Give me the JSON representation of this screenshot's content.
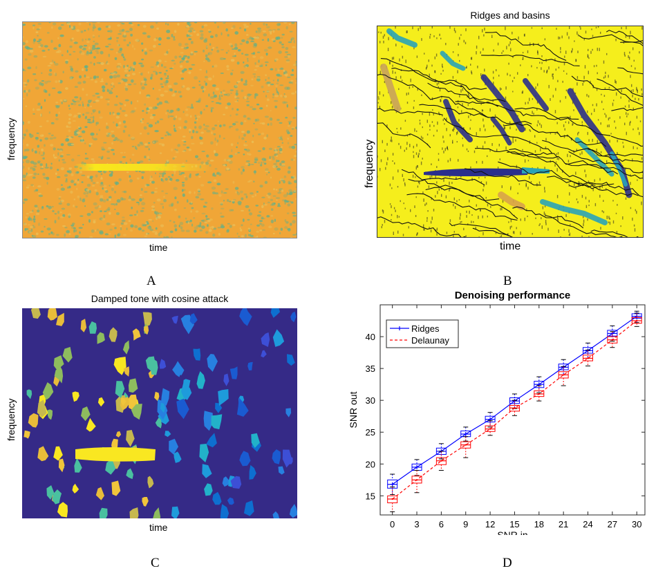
{
  "panels": {
    "a": {
      "caption": "A",
      "xlabel": "time",
      "ylabel": "frequency",
      "title": ""
    },
    "b": {
      "caption": "B",
      "xlabel": "time",
      "ylabel": "frequency",
      "title": "Ridges and basins"
    },
    "c": {
      "caption": "C",
      "xlabel": "time",
      "ylabel": "frequency",
      "title": "Damped tone with cosine attack"
    },
    "d": {
      "caption": "D"
    }
  },
  "colors": {
    "spec_bg": "#f0a637",
    "spec_speckle": "#5fb08a",
    "spec_line": "#f8e81c",
    "ridge_bg": "#f5ee1c",
    "basin": "#2b2f8c",
    "basin_teal": "#2aa3b8",
    "cell_bg": "#352a87",
    "ridges_series": "#0000ff",
    "delaunay_series": "#ff0000"
  },
  "chart_data": {
    "type": "line",
    "title": "Denoising performance",
    "xlabel": "SNR in",
    "ylabel": "SNR out",
    "x": [
      0,
      3,
      6,
      9,
      12,
      15,
      18,
      21,
      24,
      27,
      30
    ],
    "xticks": [
      "0",
      "3",
      "6",
      "9",
      "12",
      "15",
      "18",
      "21",
      "24",
      "27",
      "30"
    ],
    "yticks": [
      "15",
      "20",
      "25",
      "30",
      "35",
      "40"
    ],
    "xlim": [
      -1.5,
      31
    ],
    "ylim": [
      12,
      45
    ],
    "grid": false,
    "legend_position": "top-left",
    "series": [
      {
        "name": "Ridges",
        "style": "solid",
        "values": [
          16.8,
          19.5,
          22.0,
          24.7,
          27.0,
          29.9,
          32.5,
          35.2,
          37.8,
          40.5,
          43.2
        ],
        "boxes": [
          {
            "q1": 16.2,
            "q3": 17.5,
            "lo": 15.2,
            "hi": 18.4
          },
          {
            "q1": 19.0,
            "q3": 20.0,
            "lo": 18.2,
            "hi": 20.7
          },
          {
            "q1": 21.5,
            "q3": 22.5,
            "lo": 20.8,
            "hi": 23.2
          },
          {
            "q1": 24.3,
            "q3": 25.2,
            "lo": 23.6,
            "hi": 25.8
          },
          {
            "q1": 26.6,
            "q3": 27.5,
            "lo": 25.8,
            "hi": 28.1
          },
          {
            "q1": 29.5,
            "q3": 30.4,
            "lo": 28.7,
            "hi": 31.0
          },
          {
            "q1": 32.0,
            "q3": 33.0,
            "lo": 31.2,
            "hi": 33.7
          },
          {
            "q1": 34.8,
            "q3": 35.7,
            "lo": 34.0,
            "hi": 36.4
          },
          {
            "q1": 37.4,
            "q3": 38.3,
            "lo": 36.6,
            "hi": 39.0
          },
          {
            "q1": 40.1,
            "q3": 41.0,
            "lo": 39.3,
            "hi": 41.7
          },
          {
            "q1": 42.9,
            "q3": 43.6,
            "lo": 42.2,
            "hi": 44.0
          }
        ]
      },
      {
        "name": "Delaunay",
        "style": "dashed",
        "values": [
          14.5,
          17.5,
          20.5,
          23.0,
          25.5,
          28.8,
          31.0,
          34.0,
          36.6,
          39.5,
          42.5
        ],
        "boxes": [
          {
            "q1": 13.9,
            "q3": 15.0,
            "lo": 12.5,
            "hi": 16.4
          },
          {
            "q1": 17.0,
            "q3": 18.1,
            "lo": 15.5,
            "hi": 19.0
          },
          {
            "q1": 19.9,
            "q3": 21.0,
            "lo": 19.0,
            "hi": 22.0
          },
          {
            "q1": 22.5,
            "q3": 23.5,
            "lo": 21.0,
            "hi": 24.3
          },
          {
            "q1": 25.1,
            "q3": 26.0,
            "lo": 24.5,
            "hi": 26.8
          },
          {
            "q1": 28.3,
            "q3": 29.2,
            "lo": 27.6,
            "hi": 30.0
          },
          {
            "q1": 30.6,
            "q3": 31.5,
            "lo": 29.9,
            "hi": 32.3
          },
          {
            "q1": 33.5,
            "q3": 34.5,
            "lo": 32.3,
            "hi": 35.3
          },
          {
            "q1": 36.2,
            "q3": 37.1,
            "lo": 35.4,
            "hi": 37.9
          },
          {
            "q1": 39.0,
            "q3": 40.0,
            "lo": 38.3,
            "hi": 40.8
          },
          {
            "q1": 42.1,
            "q3": 43.0,
            "lo": 41.6,
            "hi": 43.7
          }
        ]
      }
    ]
  }
}
